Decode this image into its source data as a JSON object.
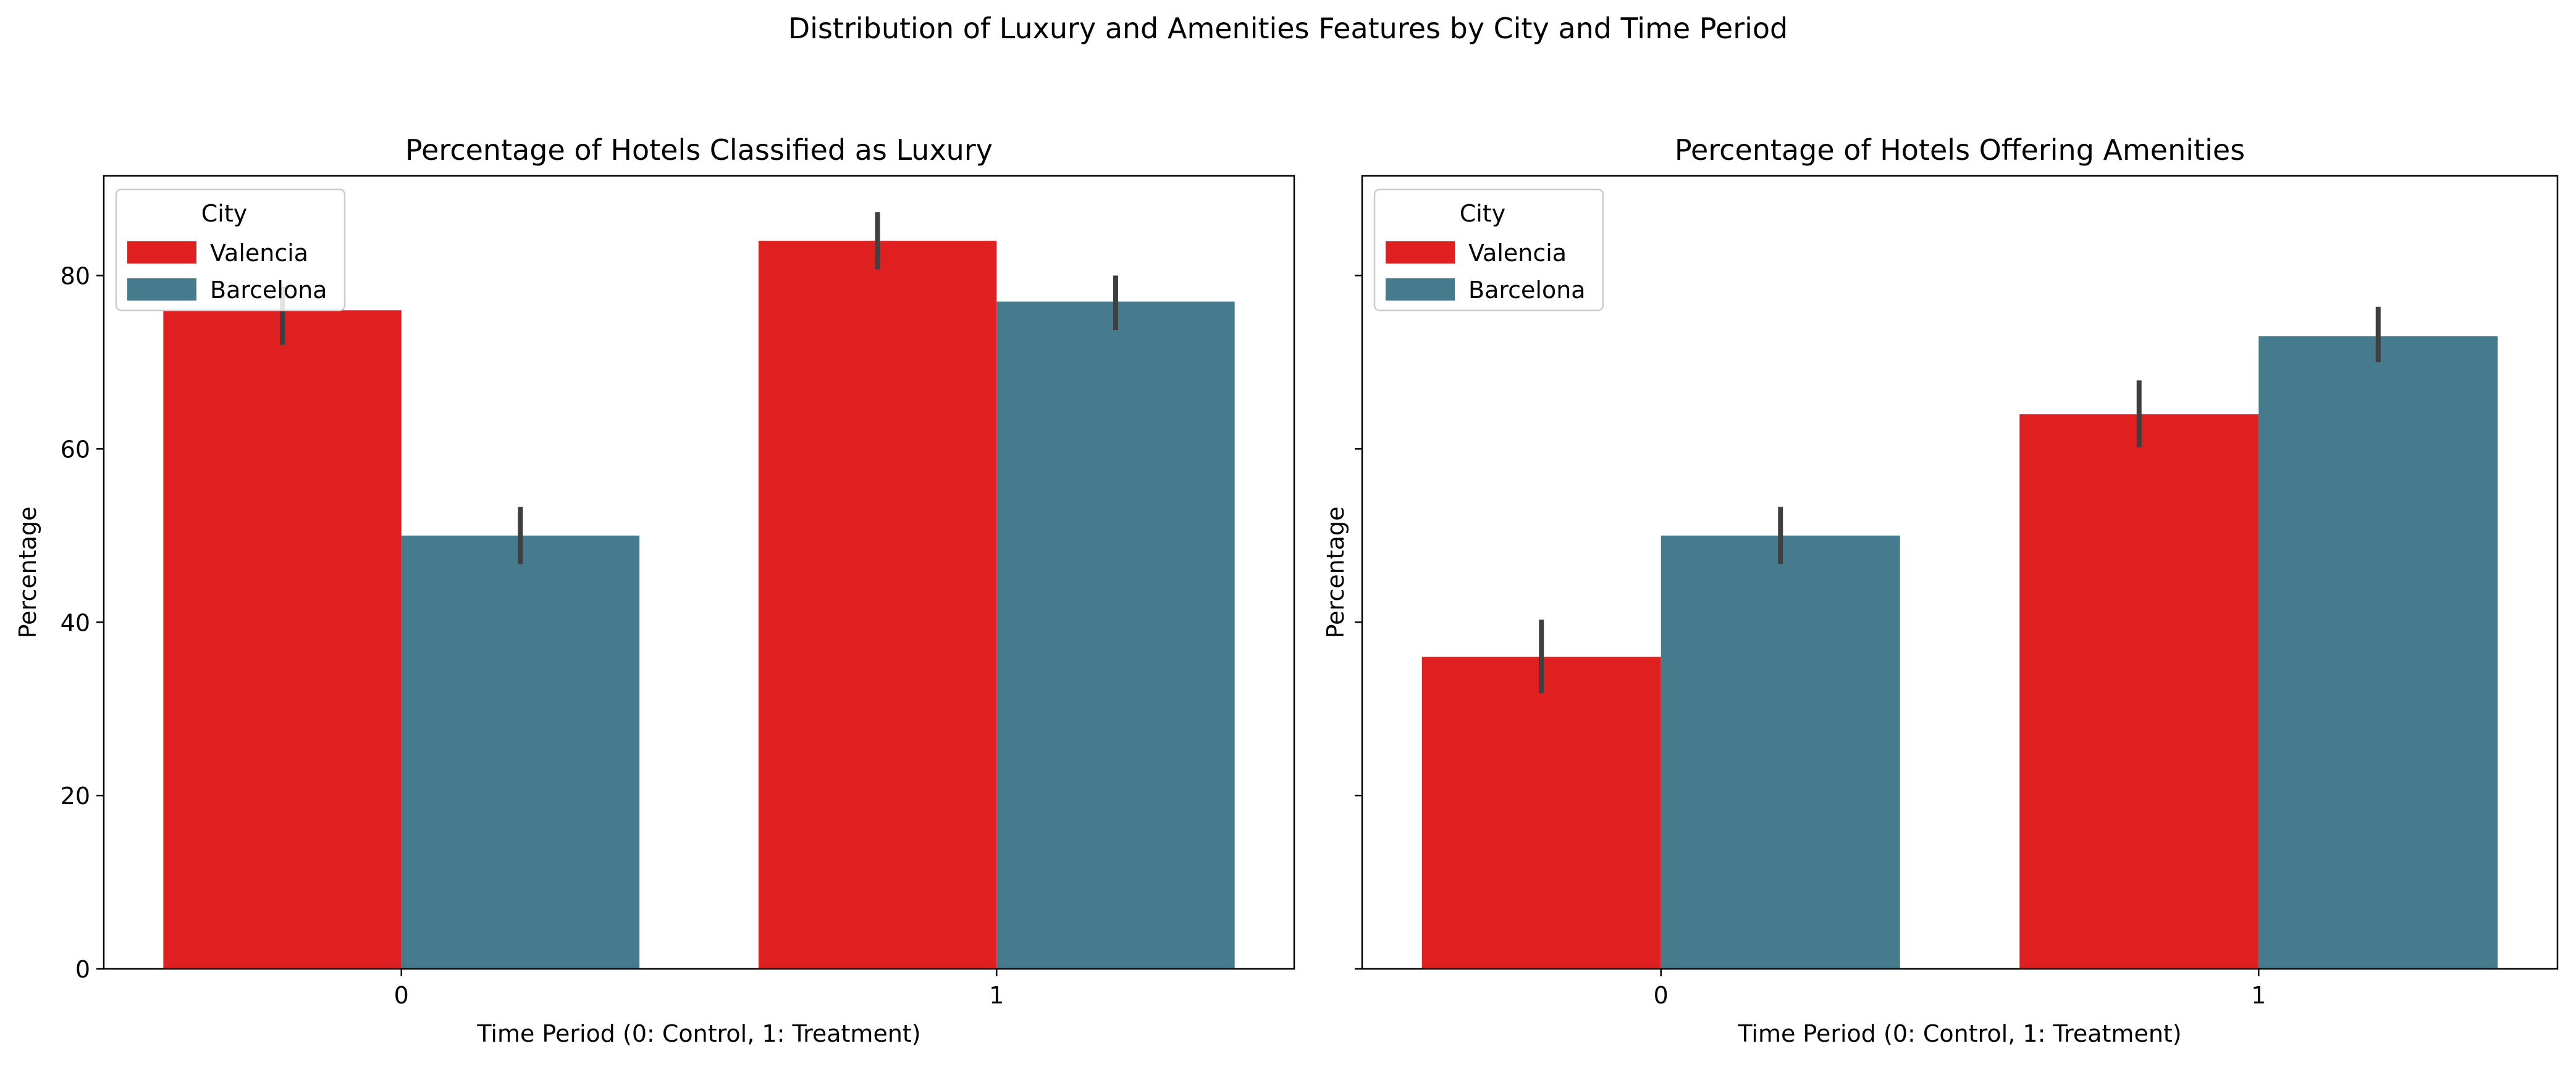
{
  "figure": {
    "suptitle": "Distribution of Luxury and Amenities Features by City and Time Period"
  },
  "colors": {
    "Valencia": "#df1f20",
    "Barcelona": "#467b8d",
    "errorbar": "#3f3f3f",
    "axis": "#000000",
    "legend_border": "#cccccc"
  },
  "chart_data": [
    {
      "type": "bar",
      "title": "Percentage of Hotels Classified as Luxury",
      "xlabel": "Time Period (0: Control, 1: Treatment)",
      "ylabel": "Percentage",
      "categories": [
        "0",
        "1"
      ],
      "ylim": [
        0,
        91.5
      ],
      "yticks": [
        0,
        20,
        40,
        60,
        80
      ],
      "show_ytick_labels": true,
      "grid": false,
      "legend": {
        "title": "City",
        "placement": "top-left",
        "entries": [
          "Valencia",
          "Barcelona"
        ]
      },
      "series": [
        {
          "name": "Valencia",
          "values": [
            76,
            84
          ],
          "err_low": [
            72,
            80.7
          ],
          "err_high": [
            78.7,
            87.3
          ]
        },
        {
          "name": "Barcelona",
          "values": [
            50,
            77
          ],
          "err_low": [
            46.7,
            73.7
          ],
          "err_high": [
            53.3,
            80
          ]
        }
      ]
    },
    {
      "type": "bar",
      "title": "Percentage of Hotels Offering Amenities",
      "xlabel": "Time Period (0: Control, 1: Treatment)",
      "ylabel": "Percentage",
      "categories": [
        "0",
        "1"
      ],
      "ylim": [
        0,
        91.5
      ],
      "yticks": [
        0,
        20,
        40,
        60,
        80
      ],
      "show_ytick_labels": false,
      "grid": false,
      "legend": {
        "title": "City",
        "placement": "top-left",
        "entries": [
          "Valencia",
          "Barcelona"
        ]
      },
      "series": [
        {
          "name": "Valencia",
          "values": [
            36,
            64
          ],
          "err_low": [
            31.8,
            60.2
          ],
          "err_high": [
            40.3,
            67.9
          ]
        },
        {
          "name": "Barcelona",
          "values": [
            50,
            73
          ],
          "err_low": [
            46.7,
            70
          ],
          "err_high": [
            53.3,
            76.4
          ]
        }
      ]
    }
  ]
}
